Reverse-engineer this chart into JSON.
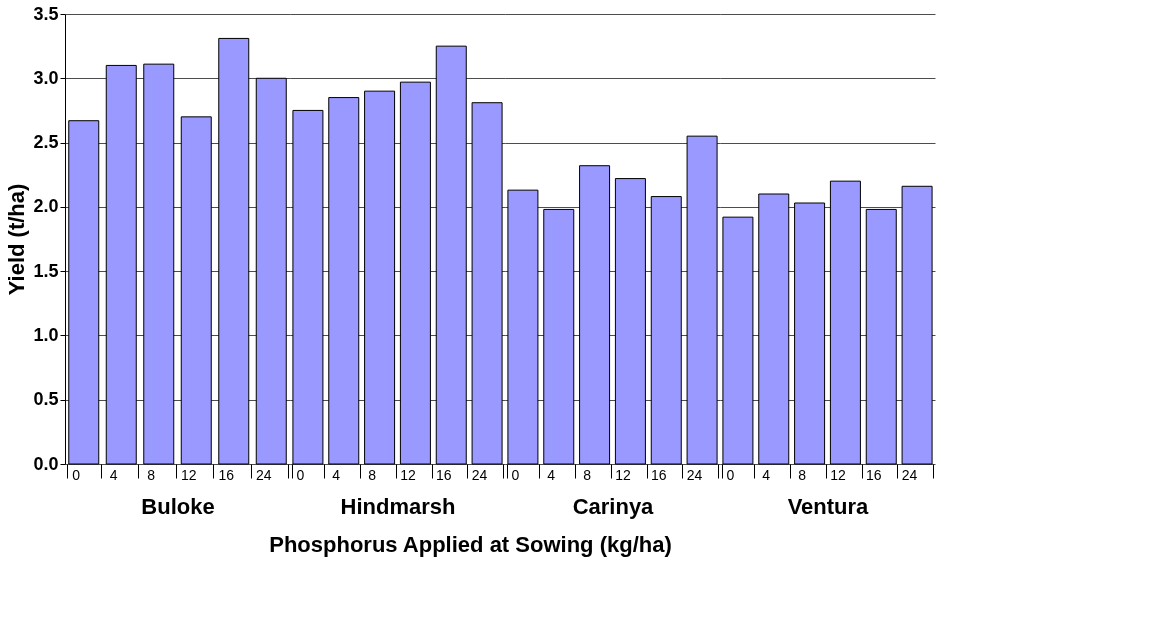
{
  "chart_data": [
    {
      "type": "bar",
      "ylabel": "Yield (t/ha)",
      "xlabel": "Buloke",
      "categories": [
        "0",
        "4",
        "8",
        "12",
        "16",
        "24"
      ],
      "values": [
        2.67,
        3.1,
        3.11,
        2.7,
        3.31,
        3.0
      ],
      "color": "#9999ff",
      "ylim": [
        0,
        3.5
      ],
      "yticks": [
        {
          "value": 0,
          "label": "0.0"
        },
        0.5,
        {
          "value": 1,
          "label": "1.0"
        },
        1.5,
        {
          "value": 2,
          "label": "2.0"
        },
        2.5,
        {
          "value": 3,
          "label": "3.0"
        },
        3.5
      ],
      "grid": "y",
      "annotations": [
        "Phosphorus Applied at Sowing (kg/ha)"
      ]
    },
    {
      "type": "bar",
      "xlabel": "Hindmarsh",
      "categories": [
        "0",
        "4",
        "8",
        "12",
        "16",
        "24"
      ],
      "values": [
        2.75,
        2.85,
        2.9,
        2.97,
        3.25,
        2.81
      ],
      "color": "#9999ff",
      "ylim": [
        0,
        3.5
      ],
      "grid": "y",
      "tick_labels": "x"
    },
    {
      "type": "bar",
      "xlabel": "Carinya",
      "categories": [
        "0",
        "4",
        "8",
        "12",
        "16",
        "24"
      ],
      "values": [
        2.13,
        1.98,
        2.32,
        2.22,
        2.08,
        2.55
      ],
      "color": "#9999ff",
      "ylim": [
        0,
        3.5
      ],
      "grid": "y",
      "tick_labels": "x"
    },
    {
      "type": "bar",
      "xlabel": "Ventura",
      "categories": [
        "0",
        "4",
        "8",
        "12",
        "16",
        "24"
      ],
      "values": [
        1.92,
        2.1,
        2.03,
        2.2,
        1.98,
        2.16
      ],
      "color": "#9999ff",
      "ylim": [
        0,
        3.5
      ],
      "grid": "y",
      "tick_labels": "x"
    }
  ]
}
